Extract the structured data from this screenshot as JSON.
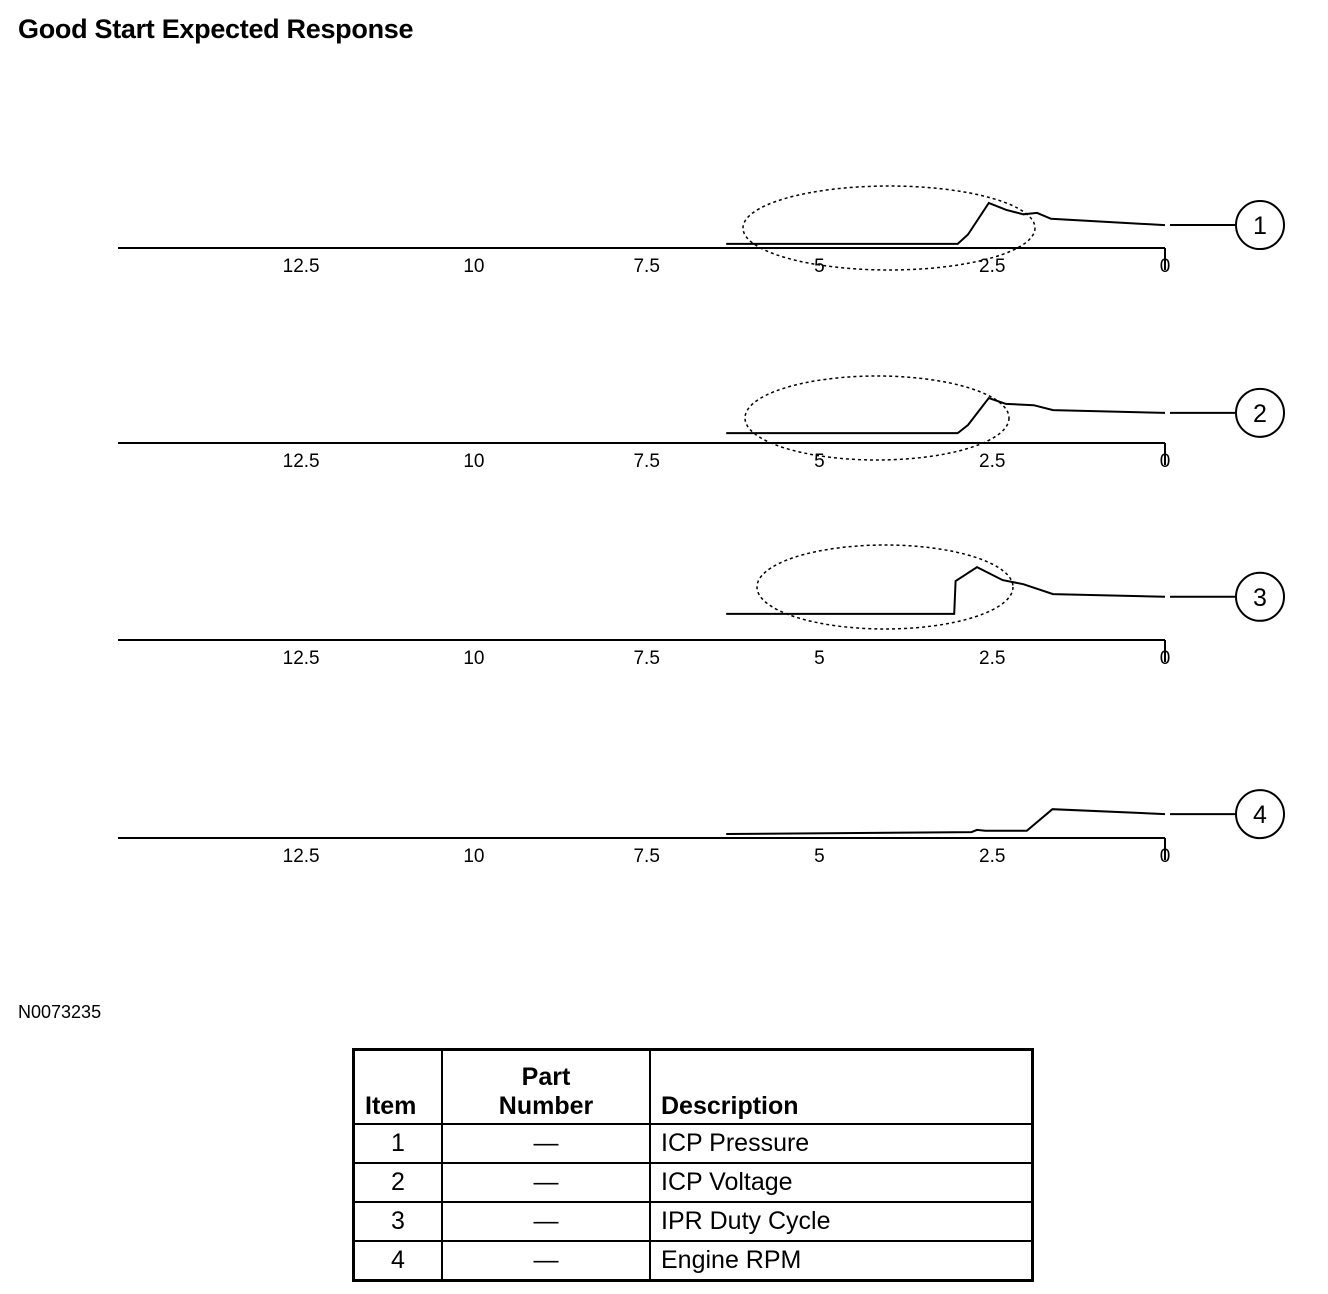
{
  "title": "Good Start Expected Response",
  "figure_id": "N0073235",
  "chart_data": [
    {
      "type": "line",
      "callout": "1",
      "x_ticks": [
        "12.5",
        "10",
        "7.5",
        "5",
        "2.5",
        "0"
      ],
      "xlim": [
        15.15,
        0
      ],
      "ylim": [
        0,
        1.8
      ],
      "grid": false,
      "highlight_ellipse": true,
      "points": [
        [
          6.35,
          0.09
        ],
        [
          3.0,
          0.09
        ],
        [
          2.85,
          0.3
        ],
        [
          2.55,
          1.0
        ],
        [
          2.3,
          0.85
        ],
        [
          2.05,
          0.75
        ],
        [
          1.85,
          0.78
        ],
        [
          1.65,
          0.65
        ],
        [
          0,
          0.51
        ]
      ]
    },
    {
      "type": "line",
      "callout": "2",
      "x_ticks": [
        "12.5",
        "10",
        "7.5",
        "5",
        "2.5",
        "0"
      ],
      "xlim": [
        15.15,
        0
      ],
      "ylim": [
        0,
        1.8
      ],
      "grid": false,
      "highlight_ellipse": true,
      "points": [
        [
          6.35,
          0.22
        ],
        [
          3.0,
          0.22
        ],
        [
          2.85,
          0.4
        ],
        [
          2.55,
          1.0
        ],
        [
          2.3,
          0.87
        ],
        [
          1.9,
          0.84
        ],
        [
          1.62,
          0.73
        ],
        [
          0,
          0.67
        ]
      ]
    },
    {
      "type": "line",
      "callout": "3",
      "x_ticks": [
        "12.5",
        "10",
        "7.5",
        "5",
        "2.5",
        "0"
      ],
      "xlim": [
        15.15,
        0
      ],
      "ylim": [
        0,
        1.8
      ],
      "grid": false,
      "highlight_ellipse": true,
      "points": [
        [
          6.35,
          0.58
        ],
        [
          3.05,
          0.58
        ],
        [
          3.03,
          1.31
        ],
        [
          2.72,
          1.62
        ],
        [
          2.35,
          1.33
        ],
        [
          2.05,
          1.24
        ],
        [
          1.62,
          1.02
        ],
        [
          0,
          0.96
        ]
      ]
    },
    {
      "type": "line",
      "callout": "4",
      "x_ticks": [
        "12.5",
        "10",
        "7.5",
        "5",
        "2.5",
        "0"
      ],
      "xlim": [
        15.15,
        0
      ],
      "ylim": [
        0,
        1.8
      ],
      "grid": false,
      "highlight_ellipse": false,
      "points": [
        [
          6.35,
          0.09
        ],
        [
          2.8,
          0.13
        ],
        [
          2.72,
          0.18
        ],
        [
          2.6,
          0.16
        ],
        [
          2.0,
          0.16
        ],
        [
          1.63,
          0.64
        ],
        [
          0,
          0.53
        ]
      ]
    }
  ],
  "table": {
    "headers": {
      "item": "Item",
      "part_line1": "Part",
      "part_line2": "Number",
      "description": "Description"
    },
    "rows": [
      {
        "item": "1",
        "part": "—",
        "description": "ICP Pressure"
      },
      {
        "item": "2",
        "part": "—",
        "description": "ICP Voltage"
      },
      {
        "item": "3",
        "part": "—",
        "description": "IPR Duty Cycle"
      },
      {
        "item": "4",
        "part": "—",
        "description": "Engine RPM"
      }
    ]
  }
}
